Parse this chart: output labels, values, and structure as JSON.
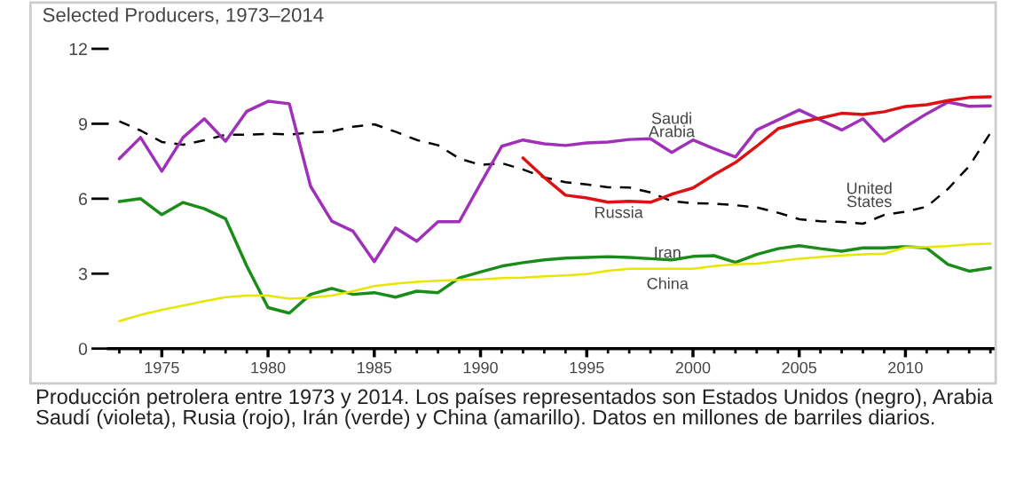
{
  "chart_data": {
    "type": "line",
    "title": "Selected Producers, 1973–2014",
    "x": [
      1973,
      1974,
      1975,
      1976,
      1977,
      1978,
      1979,
      1980,
      1981,
      1982,
      1983,
      1984,
      1985,
      1986,
      1987,
      1988,
      1989,
      1990,
      1991,
      1992,
      1993,
      1994,
      1995,
      1996,
      1997,
      1998,
      1999,
      2000,
      2001,
      2002,
      2003,
      2004,
      2005,
      2006,
      2007,
      2008,
      2009,
      2010,
      2011,
      2012,
      2013,
      2014
    ],
    "series": [
      {
        "name": "United\nStates",
        "color": "#000000",
        "line_style": "dashed",
        "values": [
          9.1,
          8.73,
          8.27,
          8.16,
          8.34,
          8.56,
          8.56,
          8.6,
          8.57,
          8.65,
          8.7,
          8.88,
          8.98,
          8.68,
          8.35,
          8.14,
          7.61,
          7.35,
          7.42,
          7.17,
          6.85,
          6.66,
          6.57,
          6.46,
          6.45,
          6.25,
          5.9,
          5.82,
          5.8,
          5.74,
          5.65,
          5.44,
          5.18,
          5.1,
          5.07,
          5.0,
          5.35,
          5.48,
          5.68,
          6.39,
          7.3,
          8.63
        ]
      },
      {
        "name": "Saudi\nArabia",
        "color": "#a030b8",
        "values": [
          7.6,
          8.45,
          7.1,
          8.45,
          9.2,
          8.3,
          9.5,
          9.9,
          9.8,
          6.5,
          5.1,
          4.7,
          3.48,
          4.83,
          4.3,
          5.08,
          5.08,
          6.6,
          8.1,
          8.35,
          8.2,
          8.13,
          8.23,
          8.27,
          8.37,
          8.4,
          7.85,
          8.35,
          8.0,
          7.67,
          8.75,
          9.15,
          9.55,
          9.15,
          8.75,
          9.2,
          8.3,
          8.87,
          9.4,
          9.87,
          9.7,
          9.72
        ]
      },
      {
        "name": "Russia",
        "color": "#dd1111",
        "values": [
          null,
          null,
          null,
          null,
          null,
          null,
          null,
          null,
          null,
          null,
          null,
          null,
          null,
          null,
          null,
          null,
          null,
          null,
          null,
          7.63,
          6.85,
          6.14,
          6.03,
          5.86,
          5.9,
          5.86,
          6.18,
          6.43,
          6.96,
          7.45,
          8.1,
          8.8,
          9.05,
          9.23,
          9.42,
          9.37,
          9.48,
          9.69,
          9.76,
          9.93,
          10.05,
          10.08
        ]
      },
      {
        "name": "Iran",
        "color": "#1a8c1a",
        "values": [
          5.89,
          6.0,
          5.36,
          5.85,
          5.6,
          5.2,
          3.3,
          1.64,
          1.42,
          2.17,
          2.41,
          2.17,
          2.24,
          2.06,
          2.3,
          2.24,
          2.83,
          3.07,
          3.3,
          3.44,
          3.55,
          3.62,
          3.65,
          3.68,
          3.65,
          3.6,
          3.55,
          3.69,
          3.72,
          3.45,
          3.77,
          4.0,
          4.12,
          4.0,
          3.9,
          4.03,
          4.03,
          4.08,
          4.03,
          3.37,
          3.1,
          3.23
        ]
      },
      {
        "name": "China",
        "color": "#e6e600",
        "values": [
          1.1,
          1.35,
          1.55,
          1.72,
          1.9,
          2.06,
          2.12,
          2.12,
          2.0,
          2.04,
          2.12,
          2.3,
          2.5,
          2.6,
          2.67,
          2.72,
          2.75,
          2.77,
          2.82,
          2.84,
          2.89,
          2.93,
          2.98,
          3.12,
          3.2,
          3.2,
          3.2,
          3.2,
          3.3,
          3.37,
          3.4,
          3.5,
          3.6,
          3.67,
          3.73,
          3.77,
          3.8,
          4.05,
          4.07,
          4.1,
          4.17,
          4.2
        ]
      }
    ],
    "xlim": [
      1972.5,
      2014.2
    ],
    "xticks": [
      1975,
      1980,
      1985,
      1990,
      1995,
      2000,
      2005,
      2010
    ],
    "ylim": [
      0,
      12
    ],
    "yticks": [
      0,
      3,
      6,
      9,
      12
    ],
    "grid": false,
    "legend": false,
    "marker": "none",
    "annotations": [
      "Producción petrolera entre 1973 y 2014. Los países representados son Estados Unidos (negro), Arabia Saudí (violeta), Rusia (rojo), Irán (verde) y China (amarillo). Datos en millones de barriles diarios."
    ]
  }
}
